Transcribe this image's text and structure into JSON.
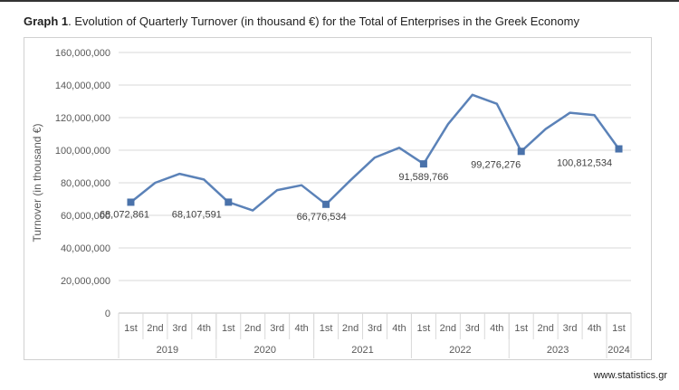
{
  "title_prefix": "Graph 1",
  "title_rest": ". Evolution of Quarterly Turnover (in thousand €) for the Total of Enterprises in the Greek Economy",
  "source": "www.statistics.gr",
  "colors": {
    "line": "#5b82b8",
    "grid": "#d9d9d9",
    "marker": "#4a72aa"
  },
  "chart_data": {
    "type": "line",
    "title": "Evolution of Quarterly Turnover (in thousand €) for the Total of Enterprises in the Greek Economy",
    "ylabel": "Turnover (in thousand €)",
    "xlabel": "",
    "ylim": [
      0,
      160000000
    ],
    "yticks": [
      0,
      20000000,
      40000000,
      60000000,
      80000000,
      100000000,
      120000000,
      140000000,
      160000000
    ],
    "ytick_labels": [
      "0",
      "20,000,000",
      "40,000,000",
      "60,000,000",
      "80,000,000",
      "100,000,000",
      "120,000,000",
      "140,000,000",
      "160,000,000"
    ],
    "grid": true,
    "legend": "none",
    "quarters": [
      "1st",
      "2nd",
      "3rd",
      "4th",
      "1st",
      "2nd",
      "3rd",
      "4th",
      "1st",
      "2nd",
      "3rd",
      "4th",
      "1st",
      "2nd",
      "3rd",
      "4th",
      "1st",
      "2nd",
      "3rd",
      "4th",
      "1st"
    ],
    "years": [
      {
        "label": "2019",
        "count": 4
      },
      {
        "label": "2020",
        "count": 4
      },
      {
        "label": "2021",
        "count": 4
      },
      {
        "label": "2022",
        "count": 4
      },
      {
        "label": "2023",
        "count": 4
      },
      {
        "label": "2024",
        "count": 1
      }
    ],
    "series": [
      {
        "name": "Turnover",
        "values": [
          68072861,
          80000000,
          85500000,
          82000000,
          68107591,
          63000000,
          75500000,
          78500000,
          66776534,
          81500000,
          95500000,
          101500000,
          91589766,
          116000000,
          134000000,
          128500000,
          99276276,
          113000000,
          123000000,
          121500000,
          100812534
        ]
      }
    ],
    "annotations": [
      {
        "index": 0,
        "text": "68,072,861"
      },
      {
        "index": 4,
        "text": "68,107,591"
      },
      {
        "index": 8,
        "text": "66,776,534"
      },
      {
        "index": 12,
        "text": "91,589,766"
      },
      {
        "index": 16,
        "text": "99,276,276"
      },
      {
        "index": 20,
        "text": "100,812,534"
      }
    ]
  }
}
